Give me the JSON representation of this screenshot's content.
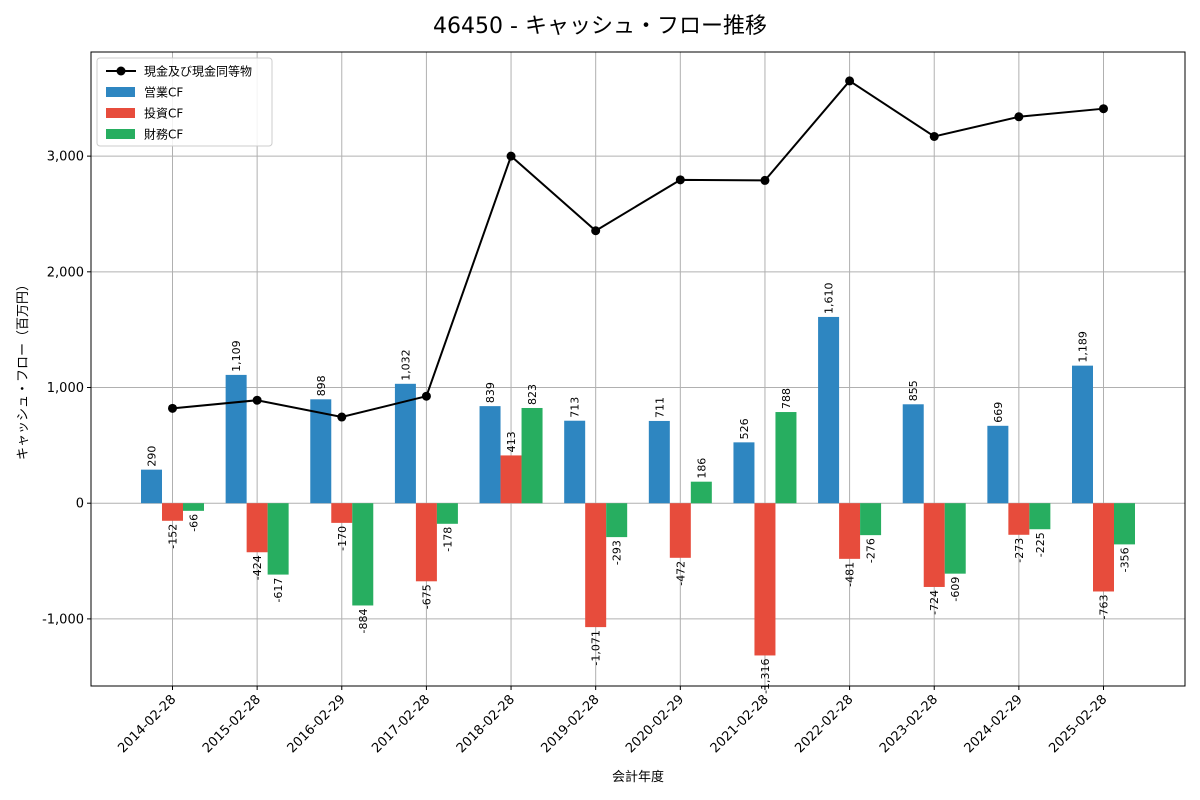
{
  "chart_data": {
    "type": "bar",
    "title": "46450 - キャッシュ・フロー推移",
    "xlabel": "会計年度",
    "ylabel": "キャッシュ・フロー（百万円）",
    "categories": [
      "2014-02-28",
      "2015-02-28",
      "2016-02-29",
      "2017-02-28",
      "2018-02-28",
      "2019-02-28",
      "2020-02-29",
      "2021-02-28",
      "2022-02-28",
      "2023-02-28",
      "2024-02-29",
      "2025-02-28"
    ],
    "ylim": [
      -1580,
      3900
    ],
    "yticks": [
      -1000,
      0,
      1000,
      2000,
      3000
    ],
    "ytick_labels": [
      "-1,000",
      "0",
      "1,000",
      "2,000",
      "3,000"
    ],
    "grid": true,
    "legend_position": "top-left",
    "series": [
      {
        "name": "営業CF",
        "kind": "bar",
        "color": "#2e86c1",
        "values": [
          290,
          1109,
          898,
          1032,
          839,
          713,
          711,
          526,
          1610,
          855,
          669,
          1189
        ],
        "labels": [
          "290",
          "1,109",
          "898",
          "1,032",
          "839",
          "713",
          "711",
          "526",
          "1,610",
          "855",
          "669",
          "1,189"
        ]
      },
      {
        "name": "投資CF",
        "kind": "bar",
        "color": "#e74c3c",
        "values": [
          -152,
          -424,
          -170,
          -675,
          413,
          -1071,
          -472,
          -1316,
          -481,
          -724,
          -273,
          -763
        ],
        "labels": [
          "-152",
          "-424",
          "-170",
          "-675",
          "413",
          "-1,071",
          "-472",
          "-1,316",
          "-481",
          "-724",
          "-273",
          "-763"
        ]
      },
      {
        "name": "財務CF",
        "kind": "bar",
        "color": "#27ae60",
        "values": [
          -66,
          -617,
          -884,
          -178,
          823,
          -293,
          186,
          788,
          -276,
          -609,
          -225,
          -356
        ],
        "labels": [
          "-66",
          "-617",
          "-884",
          "-178",
          "823",
          "-293",
          "186",
          "788",
          "-276",
          "-609",
          "-225",
          "-356"
        ]
      },
      {
        "name": "現金及び現金同等物",
        "kind": "line",
        "color": "#000000",
        "values": [
          820,
          890,
          745,
          925,
          3000,
          2355,
          2795,
          2790,
          3650,
          3170,
          3340,
          3410
        ]
      }
    ]
  }
}
